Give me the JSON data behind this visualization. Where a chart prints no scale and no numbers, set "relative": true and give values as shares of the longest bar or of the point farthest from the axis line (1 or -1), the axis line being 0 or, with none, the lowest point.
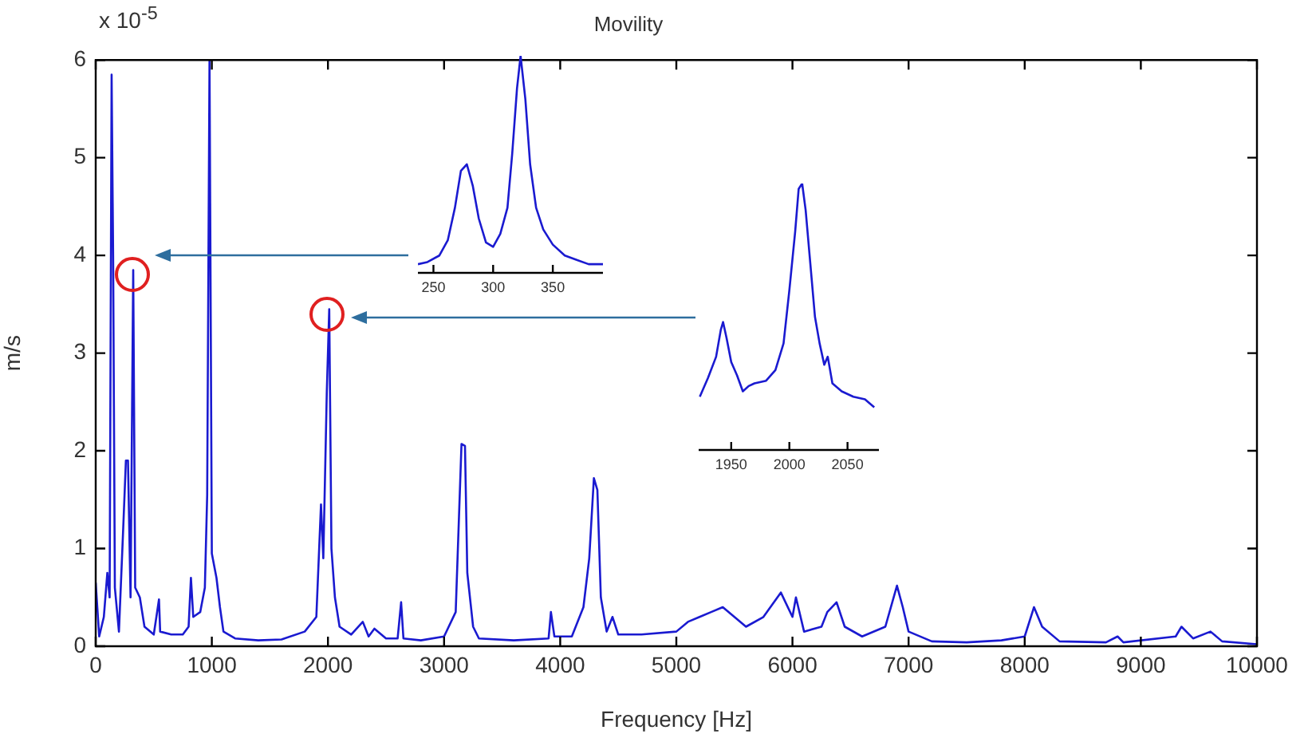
{
  "chart_data": [
    {
      "type": "line",
      "title": "Movility",
      "xlabel": "Frequency [Hz]",
      "ylabel": "m/s",
      "annotations": [
        "x 10$^{-5}$"
      ],
      "color": "#1a1ad0",
      "grid": false,
      "marker": "none",
      "line_style": "solid",
      "xlim": [
        0,
        10000
      ],
      "xticks": [
        0,
        1000,
        2000,
        3000,
        4000,
        5000,
        6000,
        7000,
        8000,
        9000,
        10000
      ],
      "ylim": [
        0,
        6
      ],
      "yticks": [
        0,
        1,
        2,
        3,
        4,
        5,
        6
      ],
      "x": [
        0,
        30,
        70,
        100,
        120,
        137,
        150,
        165,
        200,
        235,
        260,
        278,
        300,
        323,
        340,
        380,
        420,
        500,
        545,
        555,
        650,
        750,
        800,
        820,
        840,
        900,
        940,
        960,
        980,
        1000,
        1040,
        1070,
        1100,
        1200,
        1400,
        1600,
        1800,
        1900,
        1940,
        1960,
        1990,
        2011,
        2030,
        2060,
        2100,
        2200,
        2300,
        2350,
        2400,
        2500,
        2600,
        2630,
        2650,
        2800,
        3000,
        3100,
        3150,
        3180,
        3200,
        3250,
        3300,
        3600,
        3900,
        3920,
        3950,
        4100,
        4200,
        4250,
        4290,
        4320,
        4350,
        4400,
        4450,
        4500,
        4700,
        5000,
        5100,
        5200,
        5300,
        5400,
        5500,
        5600,
        5750,
        5900,
        6000,
        6030,
        6100,
        6250,
        6300,
        6380,
        6450,
        6600,
        6800,
        6900,
        6950,
        7000,
        7200,
        7500,
        7800,
        8000,
        8080,
        8150,
        8300,
        8700,
        8800,
        8850,
        9300,
        9350,
        9450,
        9600,
        9700,
        10000
      ],
      "values": [
        0.65,
        0.1,
        0.3,
        0.75,
        0.5,
        5.85,
        4.0,
        0.6,
        0.15,
        1.15,
        1.9,
        1.9,
        0.5,
        3.85,
        0.6,
        0.5,
        0.2,
        0.12,
        0.48,
        0.15,
        0.12,
        0.12,
        0.2,
        0.7,
        0.3,
        0.35,
        0.6,
        1.55,
        6.0,
        0.95,
        0.7,
        0.4,
        0.15,
        0.08,
        0.06,
        0.07,
        0.15,
        0.3,
        1.45,
        0.9,
        2.6,
        3.45,
        1.0,
        0.5,
        0.2,
        0.12,
        0.25,
        0.1,
        0.18,
        0.08,
        0.08,
        0.45,
        0.08,
        0.06,
        0.1,
        0.35,
        2.07,
        2.05,
        0.75,
        0.2,
        0.08,
        0.06,
        0.08,
        0.35,
        0.1,
        0.1,
        0.4,
        0.9,
        1.72,
        1.6,
        0.5,
        0.15,
        0.3,
        0.12,
        0.12,
        0.15,
        0.25,
        0.3,
        0.35,
        0.4,
        0.3,
        0.2,
        0.3,
        0.55,
        0.3,
        0.5,
        0.15,
        0.2,
        0.35,
        0.45,
        0.2,
        0.1,
        0.2,
        0.62,
        0.4,
        0.15,
        0.05,
        0.04,
        0.06,
        0.1,
        0.4,
        0.2,
        0.05,
        0.04,
        0.1,
        0.04,
        0.1,
        0.2,
        0.08,
        0.15,
        0.05,
        0.02
      ]
    },
    {
      "type": "line",
      "relative": true,
      "color": "#1a1ad0",
      "marker": "none",
      "tick_labels": "x",
      "xlim": [
        237,
        392
      ],
      "xticks": [
        250,
        300,
        350
      ],
      "x": [
        237,
        245,
        255,
        262,
        268,
        273,
        278,
        283,
        288,
        294,
        300,
        306,
        312,
        316,
        320,
        323,
        327,
        331,
        336,
        342,
        350,
        360,
        370,
        380,
        392
      ],
      "values": [
        0.04,
        0.05,
        0.08,
        0.15,
        0.3,
        0.47,
        0.5,
        0.4,
        0.25,
        0.14,
        0.12,
        0.18,
        0.3,
        0.55,
        0.85,
        1.0,
        0.8,
        0.5,
        0.3,
        0.2,
        0.13,
        0.08,
        0.06,
        0.04,
        0.04
      ]
    },
    {
      "type": "line",
      "relative": true,
      "color": "#1a1ad0",
      "marker": "none",
      "tick_labels": "x",
      "xlim": [
        1922,
        2077
      ],
      "xticks": [
        1950,
        2000,
        2050
      ],
      "x": [
        1923,
        1930,
        1937,
        1941,
        1943,
        1946,
        1950,
        1955,
        1960,
        1965,
        1970,
        1980,
        1988,
        1995,
        2000,
        2005,
        2008,
        2011,
        2014,
        2018,
        2022,
        2026,
        2030,
        2033,
        2037,
        2045,
        2055,
        2065,
        2073
      ],
      "values": [
        0.2,
        0.27,
        0.35,
        0.45,
        0.48,
        0.42,
        0.33,
        0.28,
        0.22,
        0.24,
        0.25,
        0.26,
        0.3,
        0.4,
        0.6,
        0.82,
        0.98,
        1.0,
        0.9,
        0.7,
        0.5,
        0.4,
        0.32,
        0.35,
        0.25,
        0.22,
        0.2,
        0.19,
        0.16
      ]
    }
  ]
}
